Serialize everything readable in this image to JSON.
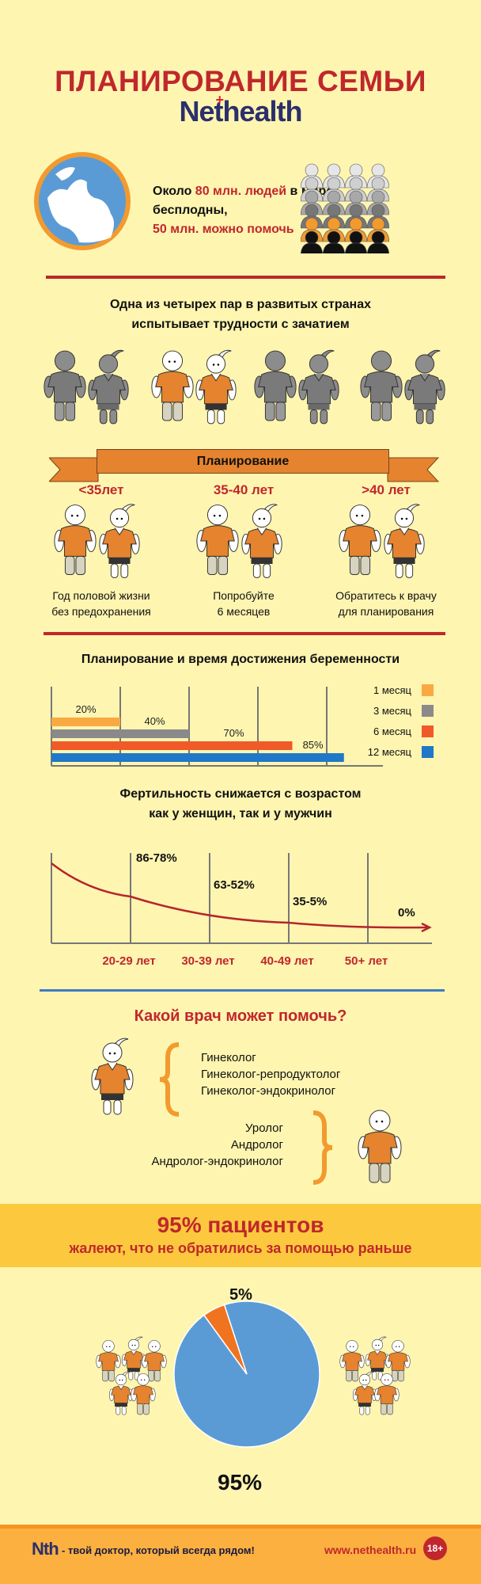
{
  "header": {
    "title": "ПЛАНИРОВАНИЕ СЕМЬИ",
    "logo_prefix": "Ne",
    "logo_t": "t",
    "logo_suffix": "health"
  },
  "intro": {
    "line1_a": "Около ",
    "line1_b": "80 млн. людей",
    "line1_c": " в мире",
    "line2": "бесплодны,",
    "line3": "50 млн. можно помочь"
  },
  "couples": {
    "heading_1": "Одна из четырех пар в развитых странах",
    "heading_2": "испытывает трудности с зачатием",
    "highlighted_index": 1,
    "total": 4
  },
  "planning": {
    "banner": "Планирование",
    "groups": [
      {
        "age": "<35лет",
        "caption_1": "Год половой жизни",
        "caption_2": "без предохранения"
      },
      {
        "age": "35-40 лет",
        "caption_1": "Попробуйте",
        "caption_2": "6 месяцев"
      },
      {
        "age": ">40 лет",
        "caption_1": "Обратитесь к врачу",
        "caption_2": "для планирования"
      }
    ]
  },
  "chart_data": [
    {
      "type": "bar",
      "title": "Планирование и время достижения беременности",
      "orientation": "horizontal",
      "xlim": [
        0,
        100
      ],
      "gridlines": [
        20,
        40,
        60,
        80
      ],
      "legend_position": "right",
      "series": [
        {
          "name": "1 месяц",
          "value": 20,
          "label": "20%",
          "color": "#f9a941"
        },
        {
          "name": "3 месяц",
          "value": 40,
          "label": "40%",
          "color": "#8a8a8a"
        },
        {
          "name": "6 месяц",
          "value": 70,
          "label": "70%",
          "color": "#f05a28"
        },
        {
          "name": "12 месяц",
          "value": 85,
          "label": "85%",
          "color": "#1f78c8"
        }
      ]
    },
    {
      "type": "line",
      "title_1": "Фертильность снижается с возрастом",
      "title_2": "как у женщин, так и у мужчин",
      "categories": [
        "20-29 лет",
        "30-39 лет",
        "40-49 лет",
        "50+ лет"
      ],
      "labels": [
        "86-78%",
        "63-52%",
        "35-5%",
        "0%"
      ],
      "color": "#b5252b"
    },
    {
      "type": "pie",
      "slices": [
        {
          "label": "95%",
          "value": 95,
          "color": "#5b9bd5"
        },
        {
          "label": "5%",
          "value": 5,
          "color": "#f0731f"
        }
      ]
    }
  ],
  "doctors": {
    "heading": "Какой врач может помочь?",
    "female": [
      "Гинеколог",
      "Гинеколог-репродуктолог",
      "Гинеколог-эндокринолог"
    ],
    "male": [
      "Уролог",
      "Андролог",
      "Андролог-эндокринолог"
    ]
  },
  "regret": {
    "headline": "95% пациентов",
    "subline": "жалеют, что не обратились за помощью раньше"
  },
  "footer": {
    "logo": "Nth",
    "tagline": "- твой доктор, который всегда рядом!",
    "url": "www.nethealth.ru",
    "age_badge": "18+"
  },
  "colors": {
    "background": "#fef5b0",
    "red": "#c0272d",
    "orange": "#e5832f",
    "navy": "#2b2f6b",
    "blue": "#3a7cc4"
  }
}
